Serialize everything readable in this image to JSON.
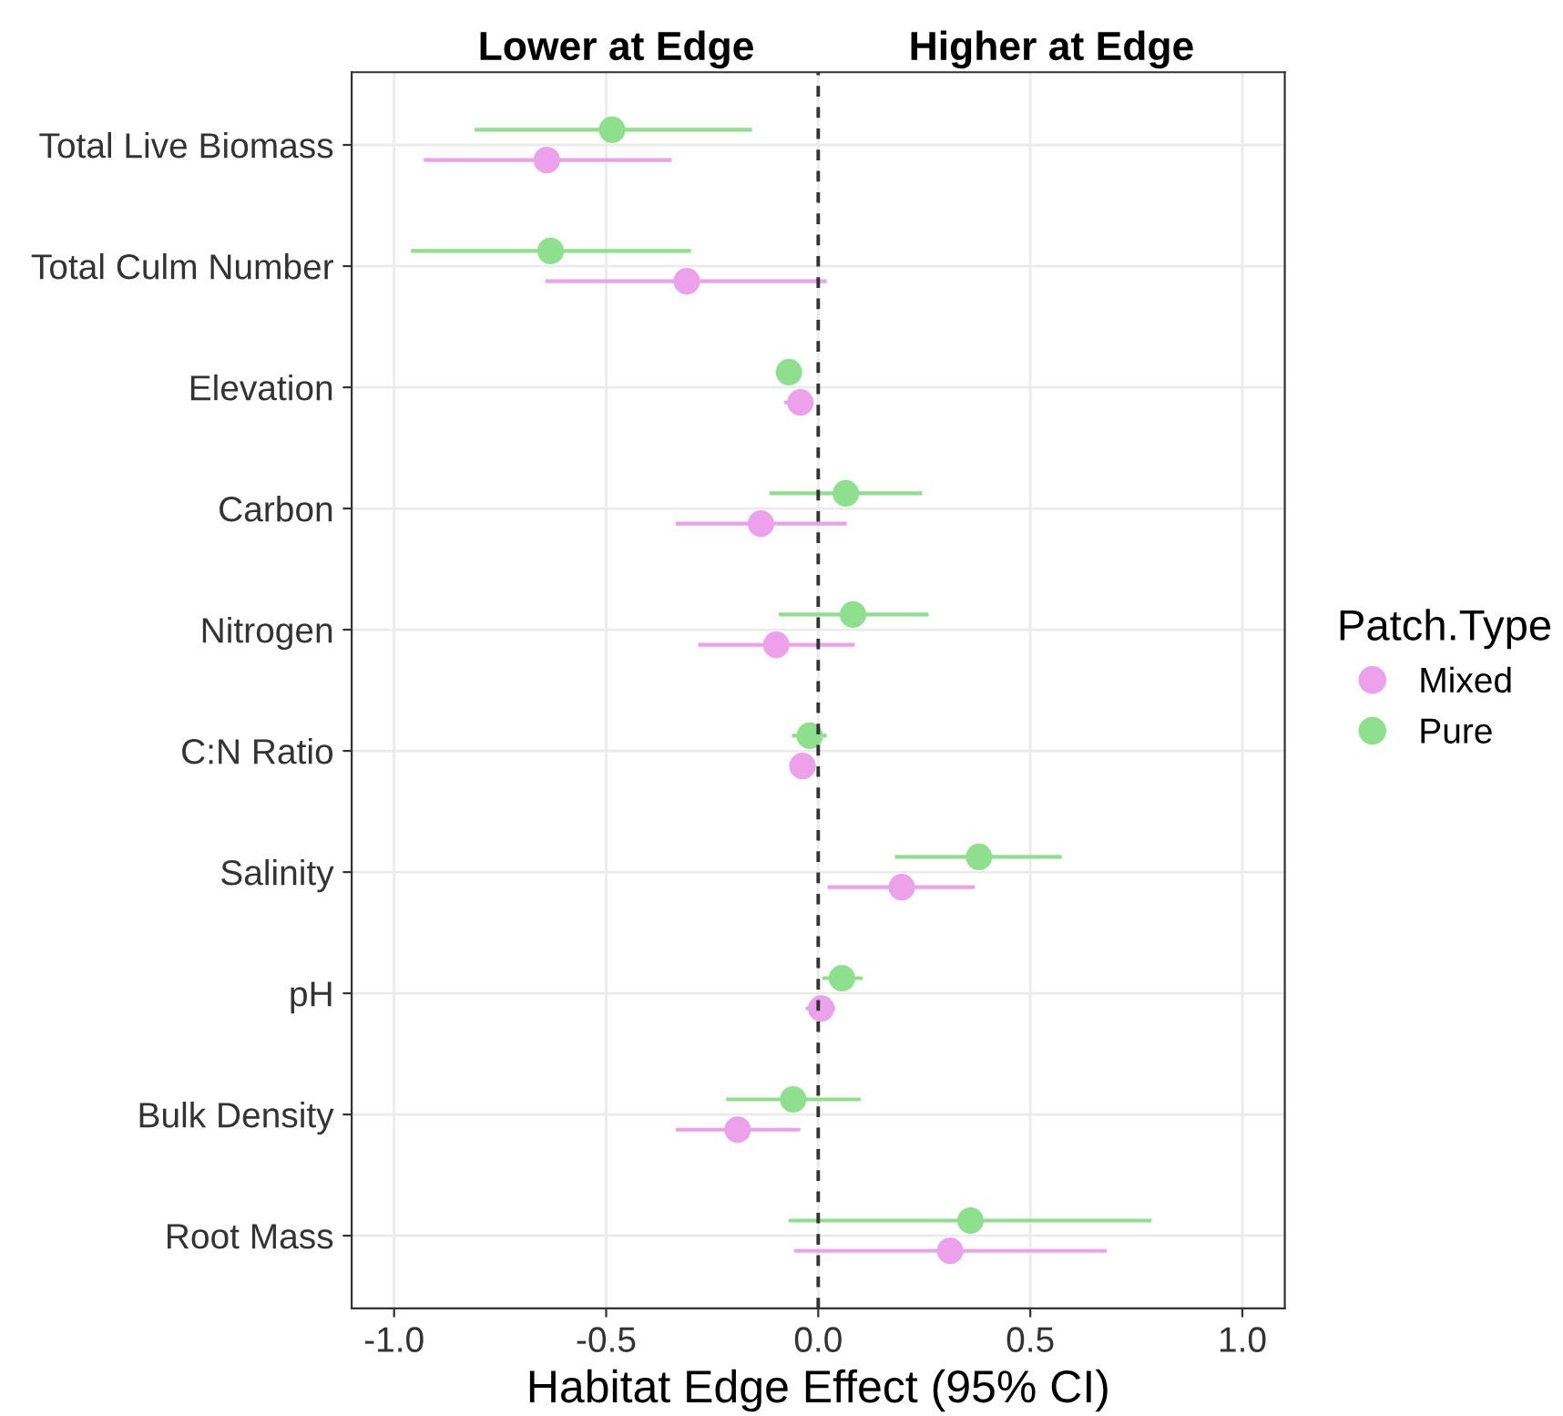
{
  "chart_data": {
    "type": "scatter",
    "orientation": "horizontal",
    "xlabel": "Habitat Edge Effect (95% CI)",
    "legend_title": "Patch.Type",
    "annotations": [
      "Lower at Edge",
      "Higher at Edge"
    ],
    "categories": [
      "Total Live Biomass",
      "Total Culm Number",
      "Elevation",
      "Carbon",
      "Nitrogen",
      "C:N Ratio",
      "Salinity",
      "pH",
      "Bulk Density",
      "Root Mass"
    ],
    "series": [
      {
        "name": "Mixed",
        "color": "#eba2eb",
        "values": [
          -0.64,
          -0.31,
          -0.042,
          -0.135,
          -0.099,
          -0.037,
          0.197,
          0.007,
          -0.19,
          0.311
        ],
        "errors": [
          [
            -0.93,
            -0.346
          ],
          [
            -0.643,
            0.02
          ],
          [
            -0.08,
            -0.014
          ],
          [
            -0.336,
            0.067
          ],
          [
            -0.283,
            0.086
          ],
          [
            -0.065,
            -0.014
          ],
          [
            0.022,
            0.369
          ],
          [
            -0.03,
            0.04
          ],
          [
            -0.336,
            -0.042
          ],
          [
            -0.057,
            0.68
          ]
        ]
      },
      {
        "name": "Pure",
        "color": "#8ee08e",
        "values": [
          -0.486,
          -0.631,
          -0.069,
          0.065,
          0.082,
          -0.02,
          0.379,
          0.056,
          -0.059,
          0.359
        ],
        "errors": [
          [
            -0.81,
            -0.156
          ],
          [
            -0.96,
            -0.3
          ],
          [
            -0.093,
            -0.043
          ],
          [
            -0.115,
            0.245
          ],
          [
            -0.093,
            0.26
          ],
          [
            -0.062,
            0.02
          ],
          [
            0.181,
            0.574
          ],
          [
            0.01,
            0.105
          ],
          [
            -0.217,
            0.1
          ],
          [
            -0.07,
            0.786
          ]
        ]
      }
    ],
    "xlim": [
      -1.1,
      1.1
    ],
    "xticks": [
      {
        "value": -1,
        "label": "-1.0"
      },
      {
        "value": -0.5,
        "label": "-0.5"
      },
      {
        "value": 0,
        "label": "0.0"
      },
      {
        "value": 0.5,
        "label": "0.5"
      },
      {
        "value": 1,
        "label": "1.0"
      }
    ],
    "ref_lines": [
      {
        "axis": "x",
        "value": 0,
        "label": null,
        "color": "#333333",
        "line_style": "dashed"
      }
    ],
    "grid": true,
    "legend": "right",
    "marker": "circle"
  }
}
